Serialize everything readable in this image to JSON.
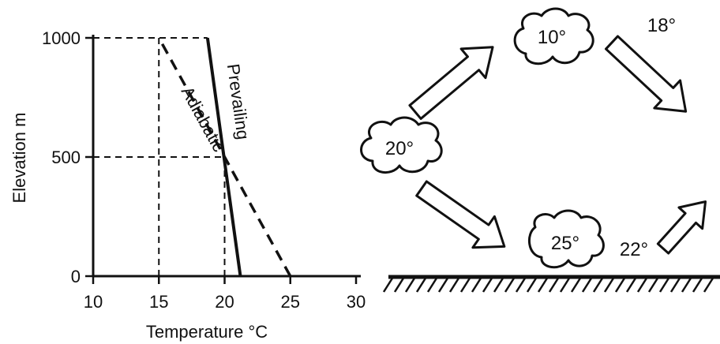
{
  "chart_data": {
    "type": "line",
    "xlabel": "Temperature °C",
    "ylabel": "Elevation m",
    "xlim": [
      10,
      30
    ],
    "ylim": [
      0,
      1000
    ],
    "x_ticks": [
      "10",
      "15",
      "20",
      "25",
      "30"
    ],
    "y_ticks": [
      "0",
      "500",
      "1000"
    ],
    "grid": false,
    "series": [
      {
        "name": "Adiabatic",
        "style": "dashed",
        "points": [
          [
            25,
            0
          ],
          [
            15,
            1000
          ]
        ]
      },
      {
        "name": "Prevailing",
        "style": "solid",
        "points": [
          [
            21.2,
            0
          ],
          [
            18.7,
            1000
          ]
        ]
      }
    ],
    "reference_lines": [
      {
        "orientation": "horizontal",
        "y": 1000,
        "x_from": 10,
        "x_to": 18.7
      },
      {
        "orientation": "horizontal",
        "y": 500,
        "x_from": 10,
        "x_to": 20
      },
      {
        "orientation": "vertical",
        "x": 15,
        "y_from": 0,
        "y_to": 1000
      },
      {
        "orientation": "vertical",
        "x": 20,
        "y_from": 0,
        "y_to": 500
      }
    ]
  },
  "diagram": {
    "clouds": [
      {
        "id": "left",
        "label": "20°"
      },
      {
        "id": "top",
        "label": "10°"
      },
      {
        "id": "ground",
        "label": "25°"
      }
    ],
    "labels": [
      {
        "id": "top-right",
        "text": "18°"
      },
      {
        "id": "bottom-right",
        "text": "22°"
      }
    ],
    "arrow_count": 4
  }
}
